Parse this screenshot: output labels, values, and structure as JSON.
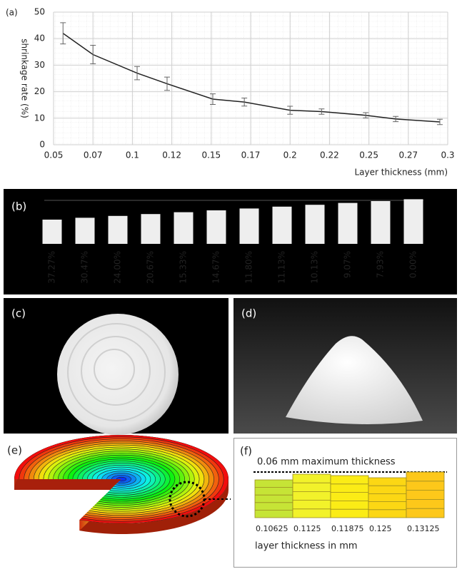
{
  "chart_data": {
    "type": "line",
    "panel_label": "(a)",
    "xlabel": "Layer thickness (mm)",
    "ylabel": "shrinkage rate (%)",
    "x": [
      0.056,
      0.075,
      0.103,
      0.122,
      0.151,
      0.171,
      0.2,
      0.22,
      0.248,
      0.267,
      0.295
    ],
    "values": [
      42,
      34,
      27,
      23,
      17.2,
      16.1,
      13,
      12.5,
      11.1,
      9.7,
      8.6
    ],
    "errors": [
      4,
      3.5,
      2.5,
      2.5,
      2,
      1.5,
      1.5,
      1,
      1,
      1,
      1
    ],
    "color": "#222222",
    "error_color": "#666666",
    "xlim": [
      0.05,
      0.3
    ],
    "ylim": [
      0,
      50
    ],
    "xticks": [
      0.05,
      {
        "value": 0.075,
        "label": "0.07"
      },
      0.1,
      {
        "value": 0.125,
        "label": "0.12"
      },
      0.15,
      {
        "value": 0.175,
        "label": "0.17"
      },
      0.2,
      {
        "value": 0.225,
        "label": "0.22"
      },
      0.25,
      {
        "value": 0.275,
        "label": "0.27"
      },
      0.3
    ],
    "yticks": [
      0,
      10,
      20,
      30,
      40,
      50
    ],
    "grid": true
  },
  "panel_b": {
    "label": "(b)",
    "shrinkage_labels": [
      "37.27%",
      "30.47%",
      "24.00%",
      "20.67%",
      "15.33%",
      "14.67%",
      "11.80%",
      "11.13%",
      "10.13%",
      "9.07%",
      "7.93%",
      "0.00%"
    ]
  },
  "panel_c": {
    "label": "(c)"
  },
  "panel_d": {
    "label": "(d)"
  },
  "panel_e": {
    "label": "(e)"
  },
  "panel_f": {
    "label": "(f)",
    "title": "0.06 mm maximum thickness",
    "thicknesses": [
      0.10625,
      0.1125,
      0.11875,
      0.125,
      0.13125
    ],
    "xlabel": "layer thickness in mm"
  }
}
